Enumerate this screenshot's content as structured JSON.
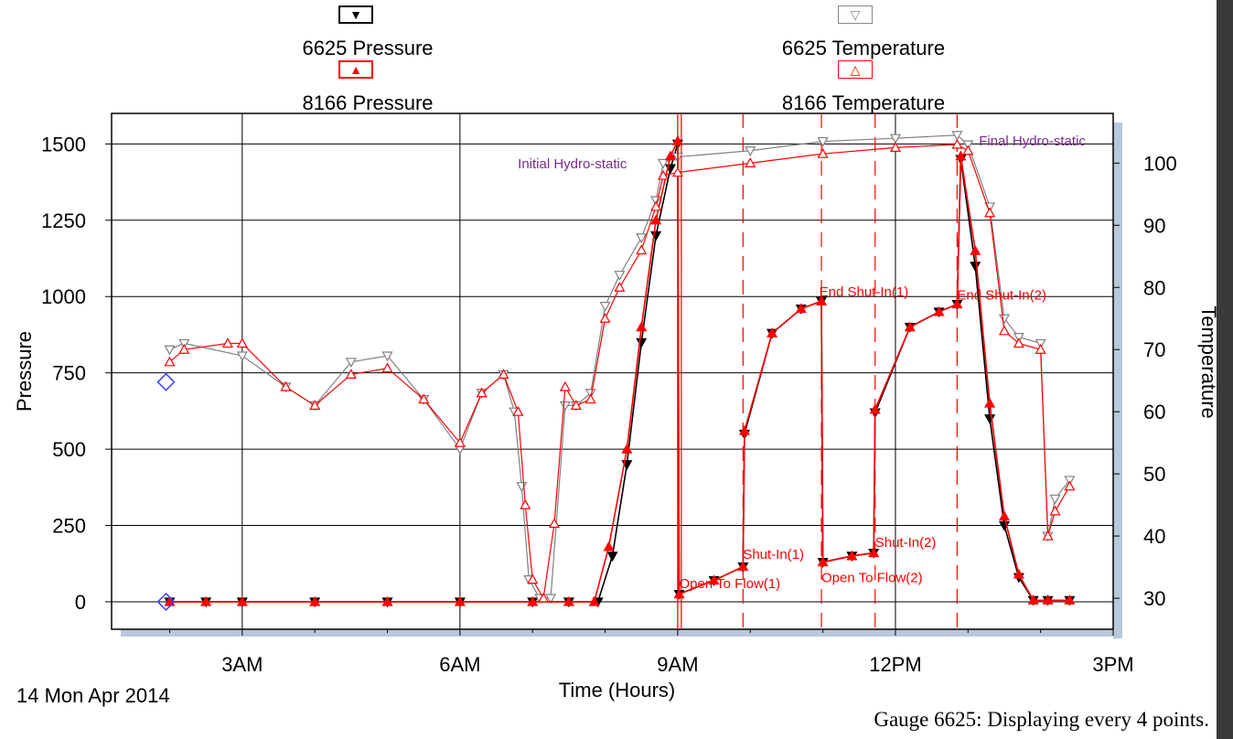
{
  "legend": {
    "entries": [
      {
        "label": "6625 Pressure",
        "symbol": "▼",
        "color": "#000000"
      },
      {
        "label": "6625 Temperature",
        "symbol": "▽",
        "color": "#808080"
      },
      {
        "label": "8166 Pressure",
        "symbol": "▲",
        "color": "#ff0000"
      },
      {
        "label": "8166 Temperature",
        "symbol": "△",
        "color": "#ff0000"
      }
    ]
  },
  "date_label": "14 Mon Apr 2014",
  "footer_note": "Gauge 6625: Displaying every 4 points.",
  "chart_data": {
    "type": "line",
    "xlabel": "Time (Hours)",
    "ylabel": "Pressure",
    "y2label": "Temperature",
    "x_ticks": [
      3,
      6,
      9,
      12,
      15
    ],
    "x_tick_labels": [
      "3AM",
      "6AM",
      "9AM",
      "12PM",
      "3PM"
    ],
    "xlim": [
      1.2,
      15.0
    ],
    "ylim": [
      -90,
      1600
    ],
    "y_ticks": [
      0,
      250,
      500,
      750,
      1000,
      1250,
      1500
    ],
    "y2lim": [
      25,
      108
    ],
    "y2_ticks": [
      30,
      40,
      50,
      60,
      70,
      80,
      90,
      100
    ],
    "grid": true,
    "series": [
      {
        "name": "6625 Pressure",
        "axis": "left",
        "color": "#000000",
        "marker": "filled-down-triangle",
        "x": [
          2.0,
          2.5,
          3.0,
          4.0,
          5.0,
          6.0,
          7.0,
          7.5,
          7.9,
          8.1,
          8.3,
          8.5,
          8.7,
          8.9,
          9.0,
          9.02,
          9.5,
          9.9,
          9.92,
          10.3,
          10.7,
          10.98,
          11.0,
          11.4,
          11.7,
          11.72,
          12.2,
          12.6,
          12.85,
          12.9,
          13.1,
          13.3,
          13.5,
          13.7,
          13.9,
          14.1,
          14.4
        ],
        "y": [
          0,
          0,
          0,
          0,
          0,
          0,
          0,
          0,
          0,
          150,
          450,
          850,
          1200,
          1420,
          1500,
          25,
          70,
          115,
          550,
          880,
          960,
          985,
          130,
          150,
          160,
          620,
          900,
          950,
          975,
          1450,
          1100,
          600,
          250,
          80,
          5,
          5,
          5
        ]
      },
      {
        "name": "6625 Temperature",
        "axis": "right",
        "color": "#808080",
        "marker": "hollow-down-triangle",
        "x": [
          2.0,
          2.2,
          3.0,
          3.6,
          4.0,
          4.5,
          5.0,
          5.5,
          6.0,
          6.3,
          6.6,
          6.75,
          6.85,
          6.95,
          7.1,
          7.25,
          7.45,
          7.6,
          7.8,
          8.0,
          8.2,
          8.5,
          8.7,
          8.8,
          9.0,
          10.0,
          11.0,
          12.0,
          12.85,
          13.0,
          13.3,
          13.5,
          13.7,
          14.0,
          14.1,
          14.2,
          14.4
        ],
        "y": [
          70,
          71,
          69,
          64,
          61,
          68,
          69,
          62,
          54,
          63,
          66,
          60,
          48,
          33,
          30,
          30,
          61,
          61,
          63,
          77,
          82,
          88,
          94,
          100,
          101,
          102,
          103.5,
          104,
          104.5,
          103,
          93,
          75,
          72,
          71,
          40,
          46,
          49
        ]
      },
      {
        "name": "8166 Pressure",
        "axis": "left",
        "color": "#ff0000",
        "marker": "filled-up-triangle",
        "x": [
          2.0,
          2.5,
          3.0,
          4.0,
          5.0,
          6.0,
          7.0,
          7.5,
          7.85,
          8.05,
          8.3,
          8.5,
          8.7,
          8.9,
          9.0,
          9.02,
          9.5,
          9.9,
          9.92,
          10.3,
          10.7,
          10.98,
          11.0,
          11.4,
          11.7,
          11.72,
          12.2,
          12.6,
          12.85,
          12.9,
          13.1,
          13.3,
          13.5,
          13.7,
          13.9,
          14.1,
          14.4
        ],
        "y": [
          0,
          0,
          0,
          0,
          0,
          0,
          0,
          0,
          0,
          180,
          500,
          900,
          1250,
          1460,
          1510,
          25,
          70,
          115,
          560,
          880,
          960,
          985,
          130,
          150,
          160,
          630,
          900,
          950,
          975,
          1460,
          1150,
          650,
          280,
          90,
          5,
          5,
          5
        ]
      },
      {
        "name": "8166 Temperature",
        "axis": "right",
        "color": "#ff0000",
        "marker": "hollow-up-triangle",
        "x": [
          2.0,
          2.2,
          2.8,
          3.0,
          3.6,
          4.0,
          4.5,
          5.0,
          5.5,
          6.0,
          6.3,
          6.6,
          6.8,
          6.9,
          7.0,
          7.15,
          7.3,
          7.45,
          7.6,
          7.8,
          8.0,
          8.2,
          8.5,
          8.7,
          8.8,
          9.0,
          10.0,
          11.0,
          12.0,
          12.85,
          13.0,
          13.3,
          13.5,
          13.7,
          14.0,
          14.1,
          14.2,
          14.4
        ],
        "y": [
          68,
          70,
          71,
          71,
          64,
          61,
          66,
          67,
          62,
          55,
          63,
          66,
          60,
          45,
          33,
          30,
          42,
          64,
          61,
          62,
          75,
          80,
          86,
          93,
          98,
          98.5,
          100,
          101.5,
          102.5,
          103,
          102,
          92,
          73,
          71,
          70,
          40,
          44,
          48
        ]
      }
    ],
    "event_lines": [
      {
        "x": 9.0,
        "style": "solid"
      },
      {
        "x": 9.05,
        "style": "solid"
      },
      {
        "x": 9.9,
        "style": "dashed"
      },
      {
        "x": 10.98,
        "style": "dashed"
      },
      {
        "x": 11.72,
        "style": "dashed"
      },
      {
        "x": 12.85,
        "style": "dashed"
      }
    ],
    "start_markers": [
      {
        "x": 1.95,
        "y": 0
      },
      {
        "x": 1.95,
        "y": 720
      }
    ],
    "annotations": [
      {
        "text": "Initial Hydro-static",
        "x": 8.3,
        "y": 1420,
        "color": "#7a2a8c",
        "anchor": "end"
      },
      {
        "text": "Final Hydro-static",
        "x": 13.15,
        "y": 1495,
        "color": "#7a2a8c",
        "anchor": "start"
      },
      {
        "text": "End Shut-In(1)",
        "x": 10.95,
        "y": 1000,
        "color": "#ff0000",
        "anchor": "start"
      },
      {
        "text": "End Shut-In(2)",
        "x": 12.85,
        "y": 990,
        "color": "#ff0000",
        "anchor": "start"
      },
      {
        "text": "Shut-In(1)",
        "x": 9.9,
        "y": 140,
        "color": "#ff0000",
        "anchor": "start"
      },
      {
        "text": "Shut-In(2)",
        "x": 11.72,
        "y": 180,
        "color": "#ff0000",
        "anchor": "start"
      },
      {
        "text": "Open To Flow(1)",
        "x": 9.02,
        "y": 45,
        "color": "#ff0000",
        "anchor": "start"
      },
      {
        "text": "Open To Flow(2)",
        "x": 10.98,
        "y": 65,
        "color": "#ff0000",
        "anchor": "start"
      }
    ]
  }
}
